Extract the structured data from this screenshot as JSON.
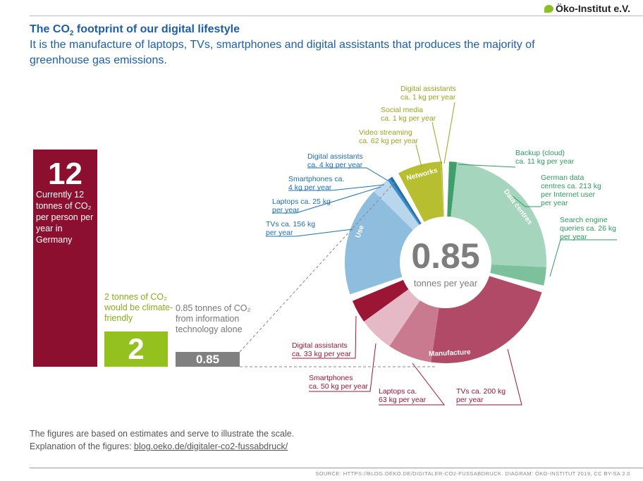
{
  "logo": {
    "text": "Öko-Institut e.V."
  },
  "title": {
    "prefix": "The CO",
    "sub": "2",
    "suffix": " footprint of our digital lifestyle"
  },
  "subtitle": "It is the manufacture of laptops, TVs, smartphones and digital assistants that produces the majority of greenhouse gas emissions.",
  "bars": {
    "current": {
      "value": "12",
      "text": "Currently 12 tonnes of CO₂ per person per year in Germany",
      "color": "#8c0f30"
    },
    "target": {
      "value": "2",
      "text": "2 tonnes of CO₂ would be climate-friendly",
      "color": "#95c11f"
    },
    "it": {
      "value": "0.85",
      "text": "0.85 tonnes of CO₂ from information technology alone",
      "color": "#808080"
    }
  },
  "chart_data": {
    "type": "pie",
    "variant": "donut",
    "unit": "kg per year",
    "center": {
      "value": "0.85",
      "label": "tonnes per year"
    },
    "groups": [
      {
        "name": "Data centres",
        "items": [
          {
            "label": "Backup (cloud) ca. 11 kg per year",
            "value": 11,
            "color": "#3f9e6a"
          },
          {
            "label": "German data centres ca. 213 kg per Internet user per year",
            "value": 213,
            "color": "#a5d5bc"
          },
          {
            "label": "Search engine queries ca. 26 kg per year",
            "value": 26,
            "color": "#7cc19b"
          }
        ]
      },
      {
        "name": "Manufacture",
        "items": [
          {
            "label": "TVs ca. 200 kg per year",
            "value": 200,
            "color": "#b04a66"
          },
          {
            "label": "Laptops ca. 63 kg per year",
            "value": 63,
            "color": "#c97a8f"
          },
          {
            "label": "Smartphones ca. 50 kg per year",
            "value": 50,
            "color": "#e5bac6"
          },
          {
            "label": "Digital assistants ca. 33 kg per year",
            "value": 33,
            "color": "#9b1535"
          }
        ]
      },
      {
        "name": "Use",
        "items": [
          {
            "label": "TVs ca. 156 kg per year",
            "value": 156,
            "color": "#8fbddd"
          },
          {
            "label": "Laptops ca. 25 kg per year",
            "value": 25,
            "color": "#b8d6ec"
          },
          {
            "label": "Smartphones ca. 4 kg per year",
            "value": 4,
            "color": "#3f8cc4"
          },
          {
            "label": "Digital assistants ca. 4 kg per year",
            "value": 4,
            "color": "#1f6fb0"
          }
        ]
      },
      {
        "name": "Networks",
        "items": [
          {
            "label": "Video streaming ca. 62 kg per year",
            "value": 62,
            "color": "#b7bf31"
          },
          {
            "label": "Social media ca. 1 kg per year",
            "value": 1,
            "color": "#c5cc50"
          },
          {
            "label": "Digital assistants ca. 1 kg per year",
            "value": 1,
            "color": "#a4ac20"
          }
        ]
      }
    ]
  },
  "labels": {
    "net_da": [
      "Digital assistants",
      "ca. 1 kg per year"
    ],
    "net_sm": [
      "Social media",
      "ca. 1 kg per year"
    ],
    "net_vs": [
      "Video streaming",
      "ca. 62 kg per year"
    ],
    "use_da": [
      "Digital assistants",
      "ca. 4 kg per year"
    ],
    "use_sp": [
      "Smartphones ca.",
      "4 kg per year"
    ],
    "use_lt": [
      "Laptops ca. 25 kg",
      "per year"
    ],
    "use_tv": [
      "TVs ca. 156 kg",
      "per year"
    ],
    "dc_bk": [
      "Backup (cloud)",
      "ca. 11 kg per year"
    ],
    "dc_de": [
      "German data",
      "centres ca. 213 kg",
      "per Internet user",
      "per year"
    ],
    "dc_se": [
      "Search engine",
      "queries ca. 26 kg",
      "per year"
    ],
    "mf_da": [
      "Digital assistants",
      "ca. 33 kg per year"
    ],
    "mf_sp": [
      "Smartphones",
      "ca. 50 kg per year"
    ],
    "mf_lt": [
      "Laptops ca.",
      "63 kg per year"
    ],
    "mf_tv": [
      "TVs ca. 200 kg",
      "per year"
    ]
  },
  "footnote": {
    "line1": "The figures are based on estimates and serve to illustrate the scale.",
    "line2_prefix": "Explanation of the figures: ",
    "link": "blog.oeko.de/digitaler-co2-fussabdruck/"
  },
  "source": "SOURCE: HTTPS://BLOG.OEKO.DE/DIGITALER-CO2-FUSSABDRUCK. DIAGRAM: ÖKO-INSTITUT 2019, CC BY-SA 2.0"
}
